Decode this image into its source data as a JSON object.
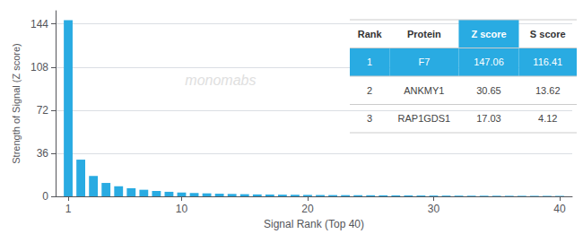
{
  "chart_data": {
    "type": "bar",
    "xlabel": "Signal Rank (Top 40)",
    "ylabel": "Strength of Signal (Z score)",
    "x": [
      1,
      2,
      3,
      4,
      5,
      6,
      7,
      8,
      9,
      10,
      11,
      12,
      13,
      14,
      15,
      16,
      17,
      18,
      19,
      20,
      21,
      22,
      23,
      24,
      25,
      26,
      27,
      28,
      29,
      30,
      31,
      32,
      33,
      34,
      35,
      36,
      37,
      38,
      39,
      40
    ],
    "values": [
      147.06,
      30.65,
      17.03,
      11.2,
      8.5,
      6.8,
      5.5,
      4.5,
      3.8,
      3.2,
      2.8,
      2.5,
      2.2,
      2.0,
      1.8,
      1.6,
      1.5,
      1.4,
      1.3,
      1.2,
      1.1,
      1.05,
      1.0,
      0.95,
      0.9,
      0.85,
      0.8,
      0.75,
      0.7,
      0.65,
      0.6,
      0.55,
      0.52,
      0.5,
      0.48,
      0.45,
      0.43,
      0.41,
      0.39,
      0.37
    ],
    "color": "#29ABE2",
    "xlim": [
      0,
      41
    ],
    "xticks": [
      1,
      10,
      20,
      30,
      40
    ],
    "ylim": [
      0,
      155
    ],
    "yticks": [
      0,
      36,
      72,
      108,
      144
    ],
    "grid": true,
    "annotations": [
      "monomabs"
    ],
    "table": {
      "headers": [
        "Rank",
        "Protein",
        "Z score",
        "S score"
      ],
      "rows": [
        [
          "1",
          "F7",
          "147.06",
          "116.41"
        ],
        [
          "2",
          "ANKMY1",
          "30.65",
          "13.62"
        ],
        [
          "3",
          "RAP1GDS1",
          "17.03",
          "4.12"
        ]
      ],
      "highlight": [
        true,
        false,
        false
      ],
      "header_highlight": [
        false,
        false,
        true,
        false
      ],
      "color": "#29ABE2"
    }
  }
}
